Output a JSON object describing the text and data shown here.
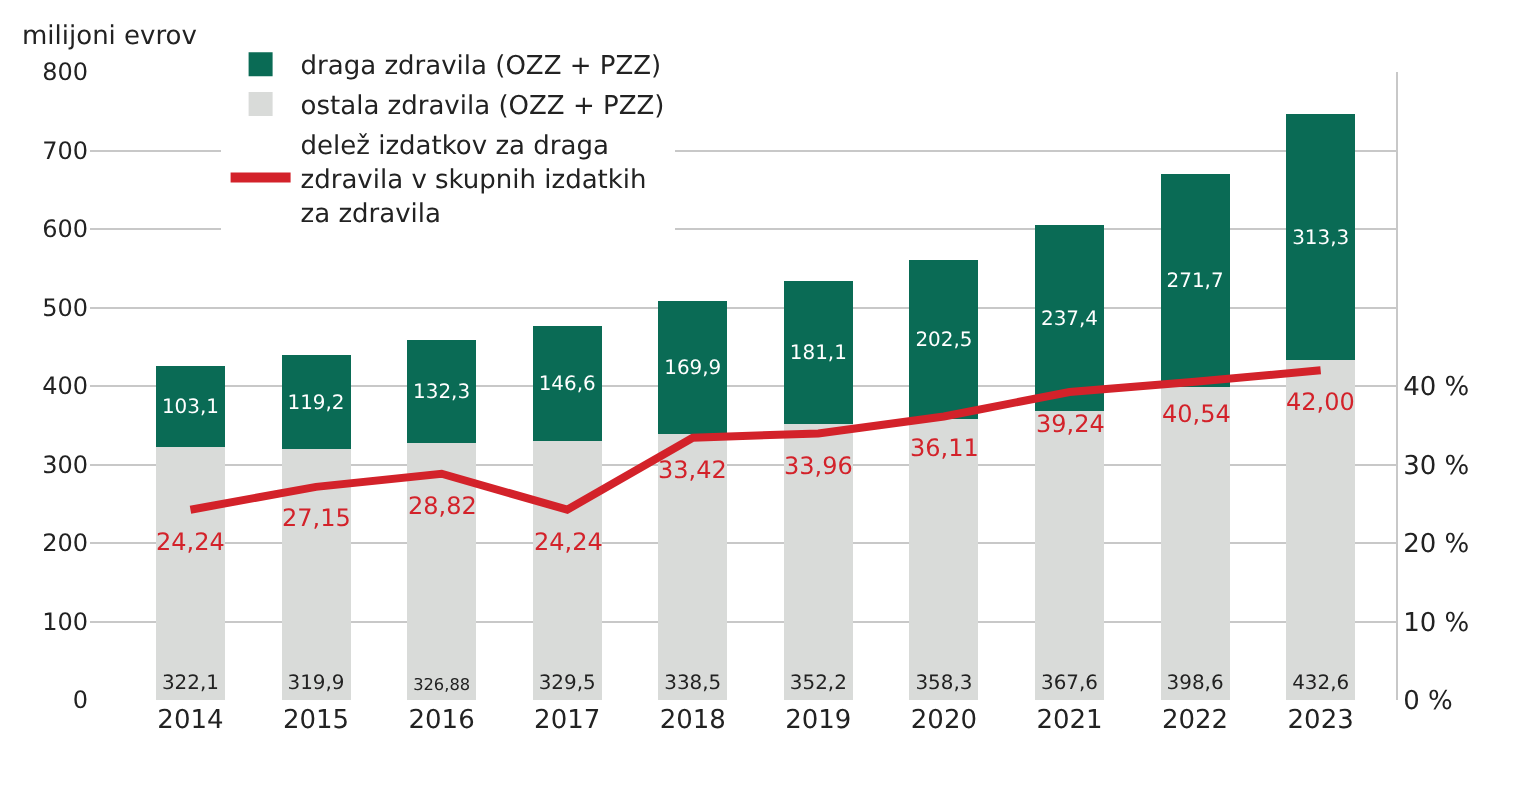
{
  "chart_data": {
    "type": "bar",
    "stacked": true,
    "ylabel": "milijoni evrov",
    "categories": [
      "2014",
      "2015",
      "2016",
      "2017",
      "2018",
      "2019",
      "2020",
      "2021",
      "2022",
      "2023"
    ],
    "series": [
      {
        "name": "ostala zdravila (OZZ + PZZ)",
        "color": "#d9dbd9",
        "values": [
          322.1,
          319.9,
          326.88,
          329.5,
          338.5,
          352.2,
          358.3,
          367.6,
          398.6,
          432.6
        ],
        "value_labels": [
          "322,1",
          "319,9",
          "326,88",
          "329,5",
          "338,5",
          "352,2",
          "358,3",
          "367,6",
          "398,6",
          "432,6"
        ]
      },
      {
        "name": "draga zdravila (OZZ + PZZ)",
        "color": "#0a6b55",
        "values": [
          103.1,
          119.2,
          132.3,
          146.6,
          169.9,
          181.1,
          202.5,
          237.4,
          271.7,
          313.3
        ],
        "value_labels": [
          "103,1",
          "119,2",
          "132,3",
          "146,6",
          "169,9",
          "181,1",
          "202,5",
          "237,4",
          "271,7",
          "313,3"
        ]
      },
      {
        "name": "delež izdatkov za draga zdravila v skupnih izdatkih za zdravila",
        "type": "line",
        "axis": "y2",
        "color": "#d3222a",
        "values": [
          24.24,
          27.15,
          28.82,
          24.24,
          33.42,
          33.96,
          36.11,
          39.24,
          40.54,
          42.0
        ],
        "value_labels": [
          "24,24",
          "27,15",
          "28,82",
          "24,24",
          "33,42",
          "33,96",
          "36,11",
          "39,24",
          "40,54",
          "42,00"
        ]
      }
    ],
    "ylim": [
      0,
      800
    ],
    "yticks": [
      0,
      100,
      200,
      300,
      400,
      500,
      600,
      700,
      800
    ],
    "y2lim": [
      0,
      80
    ],
    "y2ticks": [
      {
        "value": 0,
        "label": "0 %"
      },
      {
        "value": 10,
        "label": "10 %"
      },
      {
        "value": 20,
        "label": "20 %"
      },
      {
        "value": 30,
        "label": "30 %"
      },
      {
        "value": 40,
        "label": "40 %"
      }
    ],
    "grid": "y",
    "legend": "top",
    "marker": "none"
  }
}
